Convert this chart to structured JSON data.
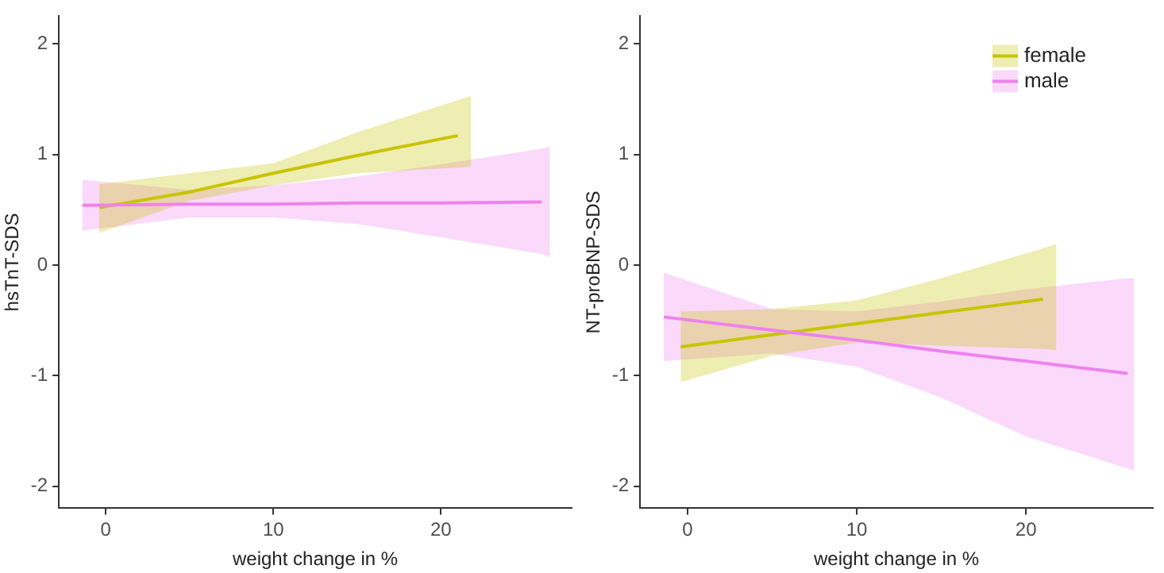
{
  "chart_data": [
    {
      "type": "line",
      "xlabel": "weight change in %",
      "ylabel": "hsTnT-SDS",
      "xlim": [
        -2.8,
        27.8
      ],
      "xticks": [
        0,
        10,
        20
      ],
      "ylim": [
        -2.2,
        2.25
      ],
      "yticks": [
        -2,
        -1,
        0,
        1,
        2
      ],
      "grid": false,
      "legend": false,
      "series": [
        {
          "color": "#c8c400",
          "x": [
            -0.4,
            5,
            10,
            15,
            21,
            21.8
          ],
          "values": [
            0.52,
            0.66,
            0.83,
            0.99,
            1.17,
            null
          ],
          "lower": [
            0.29,
            0.58,
            0.72,
            0.83,
            0.88,
            0.89
          ],
          "upper": [
            0.73,
            0.83,
            0.92,
            1.2,
            1.49,
            1.53
          ]
        },
        {
          "color": "#ee82ee",
          "x": [
            -1.4,
            5,
            10,
            15,
            20,
            26,
            26.5
          ],
          "values": [
            0.54,
            0.55,
            0.55,
            0.56,
            0.56,
            0.57,
            null
          ],
          "lower": [
            0.31,
            0.43,
            0.43,
            0.37,
            0.25,
            0.1,
            0.07
          ],
          "upper": [
            0.77,
            0.68,
            0.72,
            0.8,
            0.91,
            1.05,
            1.07
          ]
        }
      ]
    },
    {
      "type": "line",
      "xlabel": "weight change in %",
      "ylabel": "NT-proBNP-SDS",
      "xlim": [
        -2.8,
        27.5
      ],
      "xticks": [
        0,
        10,
        20
      ],
      "ylim": [
        -2.2,
        2.25
      ],
      "yticks": [
        -2,
        -1,
        0,
        1,
        2
      ],
      "grid": false,
      "legend": "top right",
      "series": [
        {
          "name": "female",
          "color": "#c8c400",
          "x": [
            -0.4,
            5,
            10,
            15,
            21,
            21.8
          ],
          "values": [
            -0.74,
            -0.63,
            -0.53,
            -0.43,
            -0.31,
            null
          ],
          "lower": [
            -1.06,
            -0.82,
            -0.7,
            -0.73,
            -0.76,
            -0.77
          ],
          "upper": [
            -0.42,
            -0.4,
            -0.32,
            -0.12,
            0.15,
            0.19
          ]
        },
        {
          "name": "male",
          "color": "#ee82ee",
          "x": [
            -1.4,
            5,
            10,
            15,
            20,
            26,
            26.4
          ],
          "values": [
            -0.47,
            -0.59,
            -0.68,
            -0.78,
            -0.87,
            -0.98,
            null
          ],
          "lower": [
            -0.87,
            -0.8,
            -0.92,
            -1.2,
            -1.55,
            -1.84,
            -1.86
          ],
          "upper": [
            -0.07,
            -0.4,
            -0.42,
            -0.33,
            -0.22,
            -0.12,
            -0.12
          ]
        }
      ]
    }
  ]
}
